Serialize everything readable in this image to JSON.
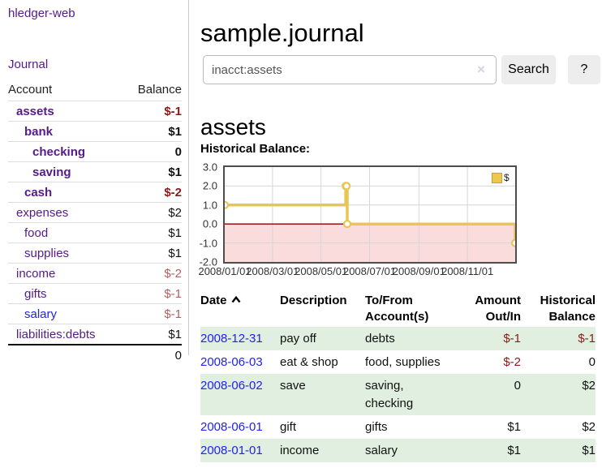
{
  "colors": {
    "link_purple": "#551a8b",
    "link_blue": "#2222ee",
    "negative_strong": "#8b1a1a",
    "negative_soft": "#b35f5f",
    "row_green": "#e0efdf",
    "chart_gold": "#e9c556",
    "negative_region_pink": "#fbdcdc",
    "zero_line_red": "#8b0000"
  },
  "app": {
    "brand": "hledger-web"
  },
  "sidebar": {
    "journal_link": "Journal",
    "headers": {
      "account": "Account",
      "balance": "Balance"
    },
    "rows": [
      {
        "account": "assets",
        "balance": "$-1"
      },
      {
        "account": "bank",
        "balance": "$1"
      },
      {
        "account": "checking",
        "balance": "0"
      },
      {
        "account": "saving",
        "balance": "$1"
      },
      {
        "account": "cash",
        "balance": "$-2"
      },
      {
        "account": "expenses",
        "balance": "$2"
      },
      {
        "account": "food",
        "balance": "$1"
      },
      {
        "account": "supplies",
        "balance": "$1"
      },
      {
        "account": "income",
        "balance": "$-2"
      },
      {
        "account": "gifts",
        "balance": "$-1"
      },
      {
        "account": "salary",
        "balance": "$-1"
      },
      {
        "account": "liabilities:debts",
        "balance": "$1"
      }
    ],
    "total": "0"
  },
  "main": {
    "title": "sample.journal",
    "search": {
      "value": "inacct:assets",
      "clear": "×",
      "button": "Search",
      "help": "?"
    },
    "heading": "assets",
    "chart_label": "Historical Balance:"
  },
  "register": {
    "headers": {
      "date": "Date",
      "description": "Description",
      "tofrom": "To/From Account(s)",
      "amount": "Amount Out/In",
      "balance": "Historical Balance"
    },
    "rows": [
      {
        "date": "2008-12-31",
        "description": "pay off",
        "tofrom": "debts",
        "amount": "$-1",
        "balance": "$-1"
      },
      {
        "date": "2008-06-03",
        "description": "eat & shop",
        "tofrom": "food, supplies",
        "amount": "$-2",
        "balance": "0"
      },
      {
        "date": "2008-06-02",
        "description": "save",
        "tofrom": "saving, checking",
        "amount": "0",
        "balance": "$2"
      },
      {
        "date": "2008-06-01",
        "description": "gift",
        "tofrom": "gifts",
        "amount": "$1",
        "balance": "$2"
      },
      {
        "date": "2008-01-01",
        "description": "income",
        "tofrom": "salary",
        "amount": "$1",
        "balance": "$1"
      }
    ]
  },
  "chart_data": {
    "type": "line",
    "title": "Historical Balance:",
    "step": true,
    "series": [
      {
        "name": "$",
        "points": [
          [
            "2008-01-01",
            1
          ],
          [
            "2008-06-01",
            2
          ],
          [
            "2008-06-02",
            2
          ],
          [
            "2008-06-03",
            0
          ],
          [
            "2008-12-31",
            -1
          ]
        ]
      }
    ],
    "x_range": [
      "2008-01-01",
      "2008-12-31"
    ],
    "x_ticks": [
      "2008/01/01",
      "2008/03/01",
      "2008/05/01",
      "2008/07/01",
      "2008/09/01",
      "2008/11/01"
    ],
    "y_ticks": [
      "3.0",
      "2.0",
      "1.0",
      "0.0",
      "-1.0",
      "-2.0"
    ],
    "ylim": [
      -2,
      3
    ],
    "grid": true,
    "legend_position": "top-right",
    "line_color": "#e9c556",
    "negative_region_color": "#fbdcdc",
    "zero_line_color": "#8b0000"
  }
}
